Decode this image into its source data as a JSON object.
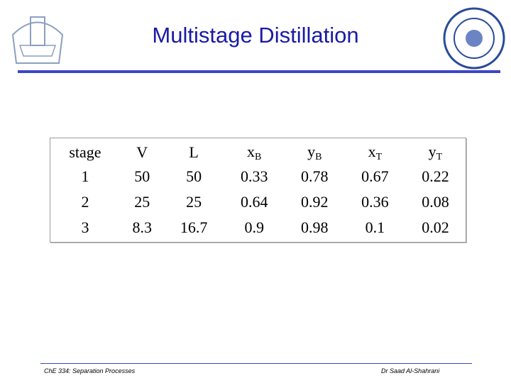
{
  "header": {
    "title": "Multistage Distillation"
  },
  "table": {
    "columns": [
      {
        "main": "stage",
        "sub": null
      },
      {
        "main": "V",
        "sub": null
      },
      {
        "main": "L",
        "sub": null
      },
      {
        "main": "x",
        "sub": "B"
      },
      {
        "main": "y",
        "sub": "B"
      },
      {
        "main": "x",
        "sub": "T"
      },
      {
        "main": "y",
        "sub": "T"
      }
    ],
    "rows": [
      [
        1,
        50,
        50,
        0.33,
        0.78,
        0.67,
        0.22
      ],
      [
        2,
        25,
        25,
        0.64,
        0.92,
        0.36,
        0.08
      ],
      [
        3,
        8.3,
        16.7,
        0.9,
        0.98,
        0.1,
        0.02
      ]
    ]
  },
  "footer": {
    "left": "ChE 334: Separation Processes",
    "right": "Dr Saad Al-Shahrani"
  }
}
